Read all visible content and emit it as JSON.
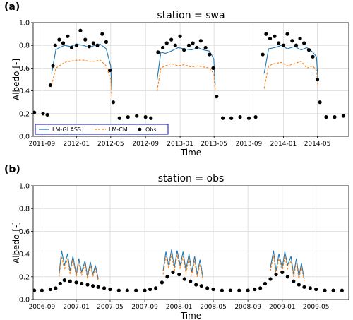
{
  "chart_data": [
    {
      "panel_label": "(a)",
      "type": "line",
      "title": "station = swa",
      "xlabel": "Time",
      "ylabel": "Albedo [-]",
      "xlim": [
        "2011-08-01",
        "2014-08-20"
      ],
      "ylim": [
        0,
        1.0
      ],
      "yticks": [
        0.0,
        0.2,
        0.4,
        0.6,
        0.8,
        1.0
      ],
      "ytick_labels": [
        "0.0",
        "0.2",
        "0.4",
        "0.6",
        "0.8",
        "1.0"
      ],
      "xticks": [
        "2011-09-01",
        "2012-01-01",
        "2012-05-01",
        "2012-09-01",
        "2013-01-01",
        "2013-05-01",
        "2013-09-01",
        "2014-01-01",
        "2014-05-01"
      ],
      "xtick_labels": [
        "2011-09",
        "2012-01",
        "2012-05",
        "2012-09",
        "2013-01",
        "2013-05",
        "2013-09",
        "2014-01",
        "2014-05"
      ],
      "grid": true,
      "legend_position": "lower-left",
      "colors": {
        "glass": "#1f77b4",
        "cm": "#ff7f0e",
        "obs": "#000000",
        "legend_border": "#3333cc"
      },
      "series": [
        {
          "name": "LM-GLASS",
          "style": "solid",
          "x": [
            "2011-10-05",
            "2011-10-20",
            "2011-11-01",
            "2011-11-20",
            "2011-12-10",
            "2012-01-01",
            "2012-01-25",
            "2012-02-15",
            "2012-03-05",
            "2012-03-25",
            "2012-04-15",
            "2012-05-01",
            "2012-05-05",
            "2012-10-12",
            "2012-10-25",
            "2012-11-10",
            "2012-12-01",
            "2012-12-25",
            "2013-01-15",
            "2013-02-10",
            "2013-03-05",
            "2013-03-25",
            "2013-04-15",
            "2013-04-30",
            "2013-05-05",
            "2013-10-25",
            "2013-11-10",
            "2013-12-01",
            "2013-12-25",
            "2014-01-15",
            "2014-02-10",
            "2014-03-05",
            "2014-03-25",
            "2014-04-15",
            "2014-04-28",
            "2014-05-03"
          ],
          "y": [
            0.55,
            0.76,
            0.78,
            0.8,
            0.79,
            0.81,
            0.8,
            0.78,
            0.8,
            0.81,
            0.77,
            0.62,
            0.4,
            0.5,
            0.74,
            0.73,
            0.75,
            0.78,
            0.77,
            0.76,
            0.78,
            0.76,
            0.75,
            0.68,
            0.45,
            0.55,
            0.77,
            0.78,
            0.8,
            0.77,
            0.79,
            0.76,
            0.78,
            0.74,
            0.7,
            0.5
          ]
        },
        {
          "name": "LM-CM",
          "style": "dashed",
          "x": [
            "2011-10-05",
            "2011-10-20",
            "2011-11-01",
            "2011-11-20",
            "2011-12-10",
            "2012-01-01",
            "2012-01-25",
            "2012-02-15",
            "2012-03-05",
            "2012-03-25",
            "2012-04-15",
            "2012-05-01",
            "2012-05-05",
            "2012-10-12",
            "2012-10-25",
            "2012-11-10",
            "2012-12-01",
            "2012-12-25",
            "2013-01-15",
            "2013-02-10",
            "2013-03-05",
            "2013-03-25",
            "2013-04-15",
            "2013-04-30",
            "2013-05-05",
            "2013-10-25",
            "2013-11-10",
            "2013-12-01",
            "2013-12-25",
            "2014-01-15",
            "2014-02-10",
            "2014-03-05",
            "2014-03-25",
            "2014-04-15",
            "2014-04-28",
            "2014-05-03"
          ],
          "y": [
            0.45,
            0.6,
            0.62,
            0.65,
            0.66,
            0.67,
            0.67,
            0.66,
            0.66,
            0.67,
            0.62,
            0.5,
            0.35,
            0.4,
            0.6,
            0.62,
            0.64,
            0.62,
            0.63,
            0.61,
            0.62,
            0.61,
            0.6,
            0.55,
            0.4,
            0.42,
            0.62,
            0.64,
            0.65,
            0.62,
            0.64,
            0.66,
            0.6,
            0.62,
            0.58,
            0.45
          ]
        },
        {
          "name": "Obs.",
          "style": "markers",
          "x": [
            "2011-08-05",
            "2011-09-05",
            "2011-09-20",
            "2011-10-01",
            "2011-10-10",
            "2011-10-18",
            "2011-11-01",
            "2011-11-15",
            "2011-12-01",
            "2011-12-15",
            "2012-01-01",
            "2012-01-15",
            "2012-02-01",
            "2012-02-15",
            "2012-03-01",
            "2012-03-15",
            "2012-04-01",
            "2012-04-15",
            "2012-04-28",
            "2012-05-10",
            "2012-06-01",
            "2012-07-01",
            "2012-08-01",
            "2012-09-01",
            "2012-09-20",
            "2012-10-15",
            "2012-11-01",
            "2012-11-15",
            "2012-12-01",
            "2012-12-15",
            "2013-01-01",
            "2013-01-15",
            "2013-02-01",
            "2013-02-15",
            "2013-03-01",
            "2013-03-15",
            "2013-04-01",
            "2013-04-15",
            "2013-04-28",
            "2013-05-10",
            "2013-06-01",
            "2013-07-01",
            "2013-08-01",
            "2013-09-01",
            "2013-09-25",
            "2013-10-20",
            "2013-11-01",
            "2013-11-15",
            "2013-12-01",
            "2013-12-15",
            "2014-01-01",
            "2014-01-15",
            "2014-02-01",
            "2014-02-15",
            "2014-03-01",
            "2014-03-15",
            "2014-04-01",
            "2014-04-15",
            "2014-05-01",
            "2014-05-10",
            "2014-06-01",
            "2014-07-01",
            "2014-08-01"
          ],
          "y": [
            0.21,
            0.2,
            0.19,
            0.45,
            0.62,
            0.8,
            0.85,
            0.82,
            0.88,
            0.78,
            0.8,
            0.93,
            0.85,
            0.79,
            0.82,
            0.8,
            0.9,
            0.83,
            0.58,
            0.3,
            0.16,
            0.17,
            0.18,
            0.17,
            0.16,
            0.74,
            0.78,
            0.82,
            0.85,
            0.8,
            0.88,
            0.76,
            0.8,
            0.82,
            0.78,
            0.84,
            0.78,
            0.72,
            0.6,
            0.35,
            0.16,
            0.16,
            0.17,
            0.16,
            0.17,
            0.72,
            0.9,
            0.86,
            0.88,
            0.82,
            0.8,
            0.9,
            0.84,
            0.8,
            0.86,
            0.82,
            0.76,
            0.7,
            0.5,
            0.3,
            0.17,
            0.17,
            0.18
          ]
        }
      ]
    },
    {
      "panel_label": "(b)",
      "type": "line",
      "title": "station = obs",
      "xlabel": "Time",
      "ylabel": "Albedo [-]",
      "xlim": [
        "2006-08-01",
        "2009-08-25"
      ],
      "ylim": [
        0,
        1.0
      ],
      "yticks": [
        0.0,
        0.2,
        0.4,
        0.6,
        0.8,
        1.0
      ],
      "ytick_labels": [
        "0.0",
        "0.2",
        "0.4",
        "0.6",
        "0.8",
        "1.0"
      ],
      "xticks": [
        "2006-09-01",
        "2007-01-01",
        "2007-05-01",
        "2007-09-01",
        "2008-01-01",
        "2008-05-01",
        "2008-09-01",
        "2009-01-01",
        "2009-05-01"
      ],
      "xtick_labels": [
        "2006-09",
        "2007-01",
        "2007-05",
        "2007-09",
        "2008-01",
        "2008-05",
        "2008-09",
        "2009-01",
        "2009-05"
      ],
      "grid": true,
      "colors": {
        "glass": "#1f77b4",
        "cm": "#ff7f0e",
        "obs": "#000000"
      },
      "series": [
        {
          "name": "LM-GLASS",
          "style": "solid",
          "x": [
            "2006-11-01",
            "2006-11-10",
            "2006-11-20",
            "2006-12-01",
            "2006-12-10",
            "2006-12-20",
            "2007-01-01",
            "2007-01-10",
            "2007-01-20",
            "2007-02-01",
            "2007-02-10",
            "2007-02-20",
            "2007-03-01",
            "2007-03-10",
            "2007-03-20",
            "2007-11-05",
            "2007-11-15",
            "2007-11-25",
            "2007-12-05",
            "2007-12-15",
            "2007-12-25",
            "2008-01-05",
            "2008-01-15",
            "2008-01-25",
            "2008-02-05",
            "2008-02-15",
            "2008-02-25",
            "2008-03-05",
            "2008-03-15",
            "2008-03-25",
            "2008-11-20",
            "2008-12-01",
            "2008-12-10",
            "2008-12-20",
            "2009-01-01",
            "2009-01-10",
            "2009-01-20",
            "2009-02-01",
            "2009-02-10",
            "2009-02-20",
            "2009-03-01",
            "2009-03-10",
            "2009-03-20"
          ],
          "y": [
            0.22,
            0.43,
            0.3,
            0.4,
            0.25,
            0.38,
            0.22,
            0.36,
            0.24,
            0.34,
            0.2,
            0.33,
            0.22,
            0.3,
            0.18,
            0.25,
            0.42,
            0.3,
            0.44,
            0.28,
            0.43,
            0.3,
            0.42,
            0.26,
            0.4,
            0.24,
            0.38,
            0.22,
            0.35,
            0.2,
            0.28,
            0.43,
            0.25,
            0.4,
            0.28,
            0.42,
            0.3,
            0.38,
            0.22,
            0.36,
            0.2,
            0.32,
            0.18
          ]
        },
        {
          "name": "LM-CM",
          "style": "dashed",
          "x": [
            "2006-11-01",
            "2006-11-10",
            "2006-11-20",
            "2006-12-01",
            "2006-12-10",
            "2006-12-20",
            "2007-01-01",
            "2007-01-10",
            "2007-01-20",
            "2007-02-01",
            "2007-02-10",
            "2007-02-20",
            "2007-03-01",
            "2007-03-10",
            "2007-03-20",
            "2007-11-05",
            "2007-11-15",
            "2007-11-25",
            "2007-12-05",
            "2007-12-15",
            "2007-12-25",
            "2008-01-05",
            "2008-01-15",
            "2008-01-25",
            "2008-02-05",
            "2008-02-15",
            "2008-02-25",
            "2008-03-05",
            "2008-03-15",
            "2008-03-25",
            "2008-11-20",
            "2008-12-01",
            "2008-12-10",
            "2008-12-20",
            "2009-01-01",
            "2009-01-10",
            "2009-01-20",
            "2009-02-01",
            "2009-02-10",
            "2009-02-20",
            "2009-03-01",
            "2009-03-10",
            "2009-03-20"
          ],
          "y": [
            0.2,
            0.38,
            0.26,
            0.36,
            0.22,
            0.35,
            0.2,
            0.33,
            0.21,
            0.31,
            0.18,
            0.3,
            0.2,
            0.27,
            0.16,
            0.22,
            0.38,
            0.27,
            0.4,
            0.25,
            0.39,
            0.27,
            0.38,
            0.23,
            0.36,
            0.21,
            0.34,
            0.2,
            0.31,
            0.18,
            0.25,
            0.39,
            0.22,
            0.36,
            0.25,
            0.38,
            0.27,
            0.34,
            0.2,
            0.32,
            0.18,
            0.29,
            0.16
          ]
        },
        {
          "name": "Obs.",
          "style": "markers",
          "x": [
            "2006-08-05",
            "2006-09-01",
            "2006-10-01",
            "2006-10-20",
            "2006-11-05",
            "2006-11-20",
            "2006-12-10",
            "2007-01-01",
            "2007-01-20",
            "2007-02-10",
            "2007-03-01",
            "2007-03-20",
            "2007-04-10",
            "2007-05-01",
            "2007-06-01",
            "2007-07-01",
            "2007-08-01",
            "2007-09-01",
            "2007-09-20",
            "2007-10-10",
            "2007-11-01",
            "2007-11-20",
            "2007-12-10",
            "2008-01-01",
            "2008-01-20",
            "2008-02-10",
            "2008-03-01",
            "2008-03-20",
            "2008-04-10",
            "2008-05-01",
            "2008-06-01",
            "2008-07-01",
            "2008-08-01",
            "2008-09-01",
            "2008-09-25",
            "2008-10-15",
            "2008-11-01",
            "2008-11-20",
            "2008-12-10",
            "2009-01-01",
            "2009-01-20",
            "2009-02-10",
            "2009-03-01",
            "2009-03-20",
            "2009-04-10",
            "2009-05-01",
            "2009-06-01",
            "2009-07-01",
            "2009-08-01"
          ],
          "y": [
            0.08,
            0.08,
            0.09,
            0.1,
            0.14,
            0.17,
            0.16,
            0.15,
            0.14,
            0.13,
            0.12,
            0.11,
            0.1,
            0.09,
            0.08,
            0.08,
            0.08,
            0.08,
            0.09,
            0.1,
            0.15,
            0.2,
            0.24,
            0.22,
            0.18,
            0.16,
            0.13,
            0.12,
            0.1,
            0.09,
            0.08,
            0.08,
            0.08,
            0.08,
            0.09,
            0.1,
            0.14,
            0.18,
            0.22,
            0.24,
            0.2,
            0.16,
            0.13,
            0.11,
            0.1,
            0.09,
            0.08,
            0.08,
            0.08
          ]
        }
      ]
    }
  ]
}
